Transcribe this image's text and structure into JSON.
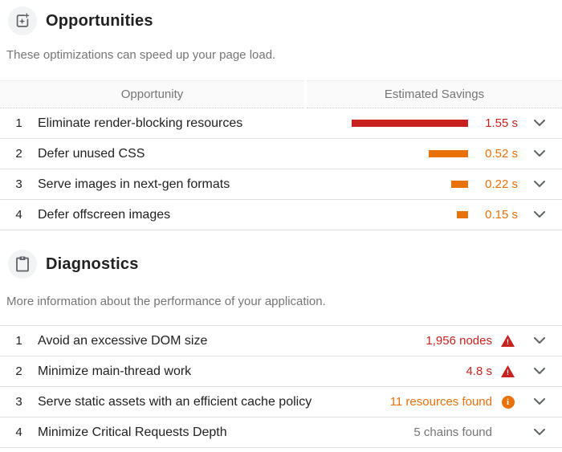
{
  "colors": {
    "fail": "#c7221f",
    "average": "#e8710a",
    "neutral": "#757575"
  },
  "opportunities": {
    "title": "Opportunities",
    "description": "These optimizations can speed up your page load.",
    "table_header": {
      "col1": "Opportunity",
      "col2": "Estimated Savings"
    },
    "rows": [
      {
        "num": "1",
        "title": "Eliminate render-blocking resources",
        "savings_label": "1.55 s",
        "savings_seconds": 1.55,
        "severity": "fail"
      },
      {
        "num": "2",
        "title": "Defer unused CSS",
        "savings_label": "0.52 s",
        "savings_seconds": 0.52,
        "severity": "average"
      },
      {
        "num": "3",
        "title": "Serve images in next-gen formats",
        "savings_label": "0.22 s",
        "savings_seconds": 0.22,
        "severity": "average"
      },
      {
        "num": "4",
        "title": "Defer offscreen images",
        "savings_label": "0.15 s",
        "savings_seconds": 0.15,
        "severity": "average"
      }
    ]
  },
  "diagnostics": {
    "title": "Diagnostics",
    "description": "More information about the performance of your application.",
    "rows": [
      {
        "num": "1",
        "title": "Avoid an excessive DOM size",
        "value": "1,956 nodes",
        "severity": "fail",
        "icon": "warning"
      },
      {
        "num": "2",
        "title": "Minimize main-thread work",
        "value": "4.8 s",
        "severity": "fail",
        "icon": "warning"
      },
      {
        "num": "3",
        "title": "Serve static assets with an efficient cache policy",
        "value": "11 resources found",
        "severity": "average",
        "icon": "info"
      },
      {
        "num": "4",
        "title": "Minimize Critical Requests Depth",
        "value": "5 chains found",
        "severity": "neutral",
        "icon": "none"
      }
    ]
  }
}
